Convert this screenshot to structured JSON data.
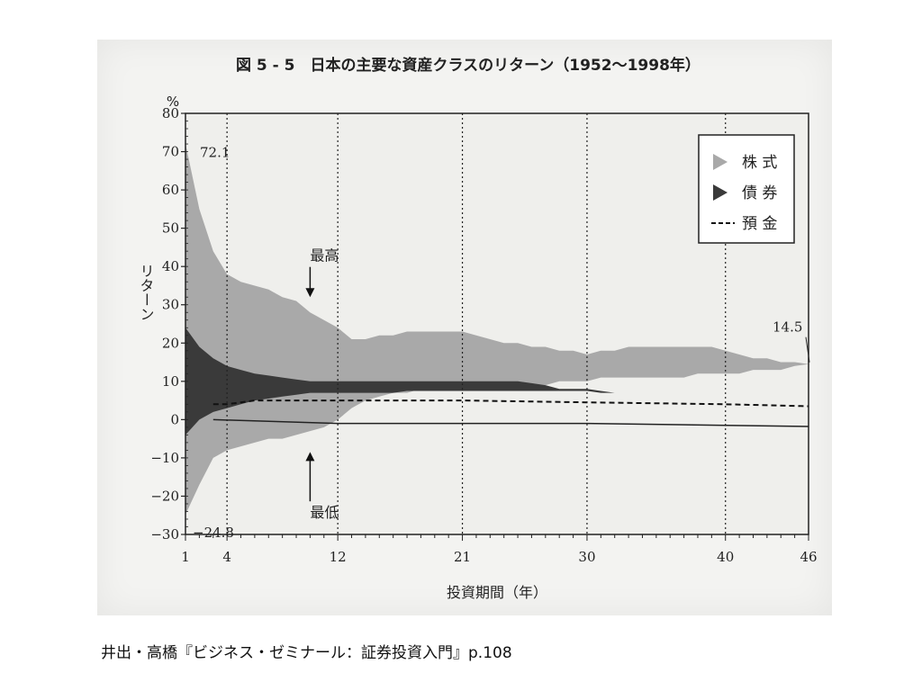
{
  "figure": {
    "title": "図 5 - 5　日本の主要な資産クラスのリターン（1952〜1998年）",
    "caption": "井出・高橋『ビジネス・ゼミナール：証券投資入門』p.108"
  },
  "chart_data": {
    "type": "area",
    "title": "図 5 - 5　日本の主要な資産クラスのリターン（1952〜1998年）",
    "xlabel": "投資期間（年）",
    "ylabel": "リターン",
    "yunit": "%",
    "xlim": [
      1,
      46
    ],
    "ylim": [
      -30,
      80
    ],
    "x_ticks": [
      "1",
      "4",
      "12",
      "21",
      "30",
      "40",
      "46"
    ],
    "x_tick_values": [
      1,
      4,
      12,
      21,
      30,
      40,
      46
    ],
    "y_ticks": [
      "80",
      "70",
      "60",
      "50",
      "40",
      "30",
      "20",
      "10",
      "0",
      "−10",
      "−20",
      "−30"
    ],
    "y_tick_values": [
      80,
      70,
      60,
      50,
      40,
      30,
      20,
      10,
      0,
      -10,
      -20,
      -30
    ],
    "gridlines_x": [
      4,
      12,
      21,
      30,
      40
    ],
    "legend": {
      "position": "top-right",
      "entries": [
        {
          "name": "株 式",
          "color": "#a9a9a9",
          "style": "area"
        },
        {
          "name": "債 券",
          "color": "#3a3a3a",
          "style": "area"
        },
        {
          "name": "預 金",
          "color": "#111111",
          "style": "dashed"
        }
      ]
    },
    "series": [
      {
        "name": "株 式",
        "x": [
          1,
          2,
          3,
          4,
          5,
          6,
          7,
          8,
          9,
          10,
          11,
          12,
          13,
          14,
          15,
          16,
          17,
          18,
          19,
          20,
          21,
          22,
          23,
          24,
          25,
          26,
          27,
          28,
          29,
          30,
          31,
          32,
          33,
          34,
          35,
          36,
          37,
          38,
          39,
          40,
          41,
          42,
          43,
          44,
          45,
          46
        ],
        "max": [
          72.1,
          55,
          44,
          38,
          36,
          35,
          34,
          32,
          31,
          28,
          26,
          24,
          21,
          21,
          22,
          22,
          23,
          23,
          23,
          23,
          23,
          22,
          21,
          20,
          20,
          19,
          19,
          18,
          18,
          17,
          18,
          18,
          19,
          19,
          19,
          19,
          19,
          19,
          19,
          18,
          17,
          16,
          16,
          15,
          15,
          14.5
        ],
        "min": [
          -24.8,
          -17,
          -10,
          -8,
          -7,
          -6,
          -5,
          -5,
          -4,
          -3,
          -2,
          0,
          3,
          5,
          6,
          7,
          7,
          8,
          8,
          8,
          8,
          8,
          8,
          8,
          9,
          9,
          9,
          10,
          10,
          10,
          11,
          11,
          11,
          11,
          11,
          11,
          11,
          12,
          12,
          12,
          12,
          13,
          13,
          13,
          14,
          14.5
        ]
      },
      {
        "name": "債 券",
        "x": [
          1,
          2,
          3,
          4,
          5,
          6,
          7,
          8,
          9,
          10,
          11,
          12,
          13,
          14,
          15,
          16,
          17,
          18,
          19,
          20,
          21,
          22,
          23,
          24,
          25,
          26,
          27,
          28,
          29,
          30,
          31,
          32,
          33,
          34,
          35,
          36,
          37,
          38,
          39,
          40,
          41,
          42,
          43,
          44,
          45,
          46
        ],
        "max": [
          24,
          19,
          16,
          14,
          13,
          12,
          11.5,
          11,
          10.5,
          10,
          10,
          10,
          10,
          10,
          10,
          10,
          10,
          10,
          10,
          10,
          10,
          10,
          10,
          10,
          10,
          9.5,
          9,
          8,
          8,
          8,
          7.5,
          7,
          7,
          7,
          7,
          7,
          7,
          7,
          7,
          6.5,
          6.5,
          6.5,
          6,
          6,
          6,
          6
        ],
        "min": [
          -4,
          0,
          2,
          3,
          4,
          5,
          5.5,
          6,
          6.5,
          7,
          7,
          7,
          7,
          7,
          7,
          7,
          7.5,
          7.5,
          7.5,
          7.5,
          7.5,
          7.5,
          7.5,
          7.5,
          7.5,
          7.5,
          7.5,
          7.5,
          7.5,
          7.5,
          7,
          7,
          7,
          7,
          7,
          7,
          7,
          7,
          7,
          6.5,
          6.5,
          6.5,
          6,
          6,
          6,
          6
        ]
      },
      {
        "name": "預 金",
        "x": [
          3,
          4,
          5,
          6,
          7,
          8,
          12,
          21,
          30,
          40,
          46
        ],
        "values": [
          4,
          4,
          4.5,
          5,
          5,
          5,
          5,
          5,
          4.5,
          4,
          3.5
        ]
      },
      {
        "name": "",
        "x": [
          3,
          12,
          21,
          30,
          40,
          46
        ],
        "values": [
          0,
          -1,
          -1,
          -1,
          -1.5,
          -1.8
        ]
      }
    ],
    "annotations": [
      {
        "text": "72.1",
        "x": 1,
        "y": 72.1
      },
      {
        "text": "−24.8",
        "x": 1,
        "y": -24.8
      },
      {
        "text": "14.5",
        "x": 46,
        "y": 14.5
      },
      {
        "text": "最高",
        "x": 10,
        "y": 38,
        "arrow_to_y": 32
      },
      {
        "text": "最低",
        "x": 10,
        "y": -19,
        "arrow_to_y": -8
      }
    ]
  }
}
